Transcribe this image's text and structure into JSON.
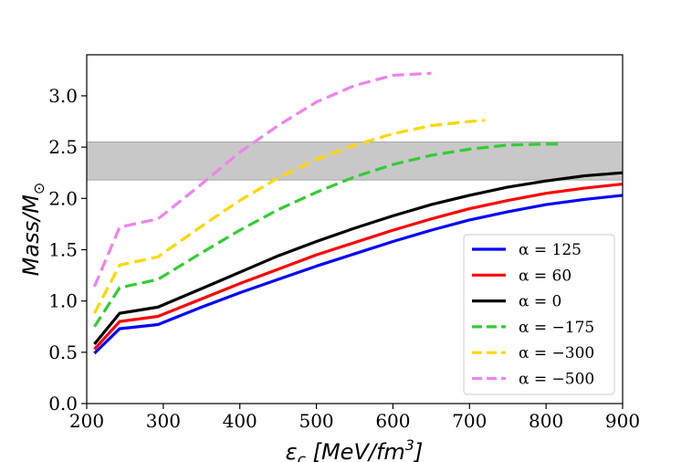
{
  "chart_data": {
    "type": "line",
    "title": "",
    "xlabel": "ε_c [MeV/fm^3]",
    "ylabel": "Mass/M_⊙",
    "xlim": [
      200,
      900
    ],
    "ylim": [
      0.0,
      3.4
    ],
    "xticks": [
      "200",
      "300",
      "400",
      "500",
      "600",
      "700",
      "800",
      "900"
    ],
    "yticks": [
      "0.0",
      "0.5",
      "1.0",
      "1.5",
      "2.0",
      "2.5",
      "3.0"
    ],
    "grid": false,
    "legend_position": "lower-right",
    "band": {
      "y_low": 2.18,
      "y_high": 2.55,
      "color": "#c8c8c8"
    },
    "series": [
      {
        "name": "α = 125",
        "color": "#0000ff",
        "dash": "solid",
        "x": [
          210,
          243,
          293,
          350,
          400,
          450,
          500,
          550,
          600,
          650,
          700,
          750,
          800,
          850,
          900
        ],
        "y": [
          0.49,
          0.73,
          0.77,
          0.94,
          1.08,
          1.21,
          1.34,
          1.46,
          1.58,
          1.69,
          1.79,
          1.87,
          1.94,
          1.99,
          2.03
        ]
      },
      {
        "name": "α = 60",
        "color": "#ff0000",
        "dash": "solid",
        "x": [
          210,
          243,
          293,
          350,
          400,
          450,
          500,
          550,
          600,
          650,
          700,
          750,
          800,
          850,
          900
        ],
        "y": [
          0.53,
          0.8,
          0.85,
          1.02,
          1.17,
          1.31,
          1.45,
          1.57,
          1.69,
          1.8,
          1.9,
          1.98,
          2.05,
          2.1,
          2.14
        ]
      },
      {
        "name": "α = 0",
        "color": "#000000",
        "dash": "solid",
        "x": [
          210,
          243,
          293,
          350,
          400,
          450,
          500,
          550,
          600,
          650,
          700,
          750,
          800,
          850,
          900
        ],
        "y": [
          0.58,
          0.88,
          0.94,
          1.12,
          1.28,
          1.44,
          1.58,
          1.71,
          1.83,
          1.94,
          2.03,
          2.11,
          2.17,
          2.22,
          2.25
        ]
      },
      {
        "name": "α = −175",
        "color": "#33cc33",
        "dash": "dashed",
        "x": [
          210,
          243,
          293,
          350,
          400,
          450,
          500,
          550,
          600,
          650,
          700,
          750,
          800,
          820
        ],
        "y": [
          0.75,
          1.13,
          1.21,
          1.47,
          1.69,
          1.89,
          2.06,
          2.21,
          2.33,
          2.42,
          2.48,
          2.52,
          2.53,
          2.53
        ]
      },
      {
        "name": "α = −300",
        "color": "#ffd700",
        "dash": "dashed",
        "x": [
          210,
          243,
          293,
          350,
          400,
          450,
          500,
          550,
          600,
          650,
          700,
          720
        ],
        "y": [
          0.88,
          1.35,
          1.43,
          1.73,
          1.98,
          2.2,
          2.38,
          2.52,
          2.63,
          2.71,
          2.75,
          2.76
        ]
      },
      {
        "name": "α = −500",
        "color": "#ee82ee",
        "dash": "dashed",
        "x": [
          210,
          243,
          293,
          350,
          400,
          450,
          500,
          550,
          600,
          650
        ],
        "y": [
          1.14,
          1.72,
          1.8,
          2.14,
          2.45,
          2.71,
          2.94,
          3.1,
          3.2,
          3.22
        ]
      }
    ]
  }
}
